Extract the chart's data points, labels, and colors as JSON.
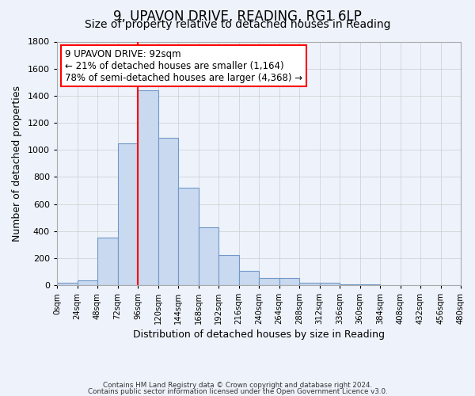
{
  "title": "9, UPAVON DRIVE, READING, RG1 6LP",
  "subtitle": "Size of property relative to detached houses in Reading",
  "xlabel": "Distribution of detached houses by size in Reading",
  "ylabel": "Number of detached properties",
  "bin_edges": [
    0,
    24,
    48,
    72,
    96,
    120,
    144,
    168,
    192,
    216,
    240,
    264,
    288,
    312,
    336,
    360,
    384,
    408,
    432,
    456,
    480
  ],
  "bin_counts": [
    15,
    35,
    350,
    1050,
    1440,
    1090,
    720,
    430,
    220,
    105,
    55,
    50,
    20,
    15,
    5,
    3,
    2,
    1,
    1,
    0
  ],
  "bar_facecolor": "#c9d9f0",
  "bar_edgecolor": "#7098c8",
  "reference_line_x": 96,
  "reference_line_color": "red",
  "annotation_line1": "9 UPAVON DRIVE: 92sqm",
  "annotation_line2": "← 21% of detached houses are smaller (1,164)",
  "annotation_line3": "78% of semi-detached houses are larger (4,368) →",
  "ylim": [
    0,
    1800
  ],
  "xlim": [
    0,
    480
  ],
  "tick_step": 24,
  "footnote1": "Contains HM Land Registry data © Crown copyright and database right 2024.",
  "footnote2": "Contains public sector information licensed under the Open Government Licence v3.0.",
  "background_color": "#eef3fb",
  "grid_color": "#cccccc",
  "title_fontsize": 12,
  "subtitle_fontsize": 10,
  "annotation_fontsize": 8.5,
  "yticks": [
    0,
    200,
    400,
    600,
    800,
    1000,
    1200,
    1400,
    1600,
    1800
  ]
}
